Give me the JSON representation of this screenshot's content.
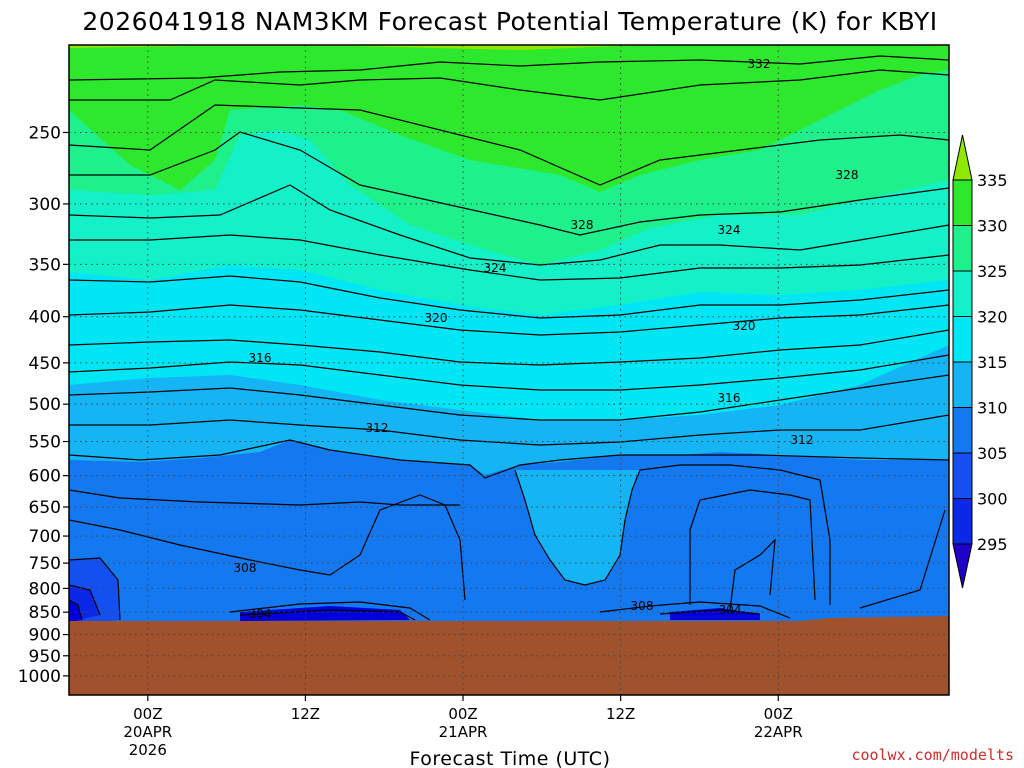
{
  "chart_data": {
    "type": "heatmap",
    "title": "2026041918 NAM3KM Forecast Potential Temperature (K) for KBYI",
    "xlabel": "Forecast Time (UTC)",
    "ylabel": "",
    "y_axis_scale": "log-pressure",
    "y_axis_reversed": true,
    "y_ticks": [
      "250",
      "300",
      "350",
      "400",
      "450",
      "500",
      "550",
      "600",
      "650",
      "700",
      "750",
      "800",
      "850",
      "900",
      "950",
      "1000"
    ],
    "ylim": [
      1050,
      200
    ],
    "x_ticks": [
      {
        "line1": "00Z",
        "line2": "20APR",
        "line3": "2026",
        "time": "2026-04-20T00Z"
      },
      {
        "line1": "12Z",
        "line2": "",
        "line3": "",
        "time": "2026-04-20T12Z"
      },
      {
        "line1": "00Z",
        "line2": "21APR",
        "line3": "",
        "time": "2026-04-21T00Z"
      },
      {
        "line1": "12Z",
        "line2": "",
        "line3": "",
        "time": "2026-04-21T12Z"
      },
      {
        "line1": "00Z",
        "line2": "22APR",
        "line3": "",
        "time": "2026-04-22T00Z"
      }
    ],
    "xlim": [
      "2026-04-19T18Z",
      "2026-04-22T13Z"
    ],
    "grid": true,
    "colorbar": {
      "levels": [
        "335",
        "330",
        "325",
        "320",
        "315",
        "310",
        "305",
        "300",
        "295"
      ],
      "colors": [
        "#90e800",
        "#2de82d",
        "#1ef08c",
        "#14f0c8",
        "#00e6f5",
        "#14b4f5",
        "#1478f0",
        "#1450f0",
        "#0a28e6",
        "#0000dc",
        "#1e00c8"
      ],
      "extend": "both"
    },
    "contour_labels": [
      "332",
      "328",
      "328",
      "324",
      "324",
      "320",
      "320",
      "316",
      "316",
      "312",
      "312",
      "308",
      "308",
      "304",
      "304"
    ],
    "underground_color": "#a0522d",
    "surface_pressure_hpa": 866
  },
  "credit": "coolwx.com/modelts"
}
